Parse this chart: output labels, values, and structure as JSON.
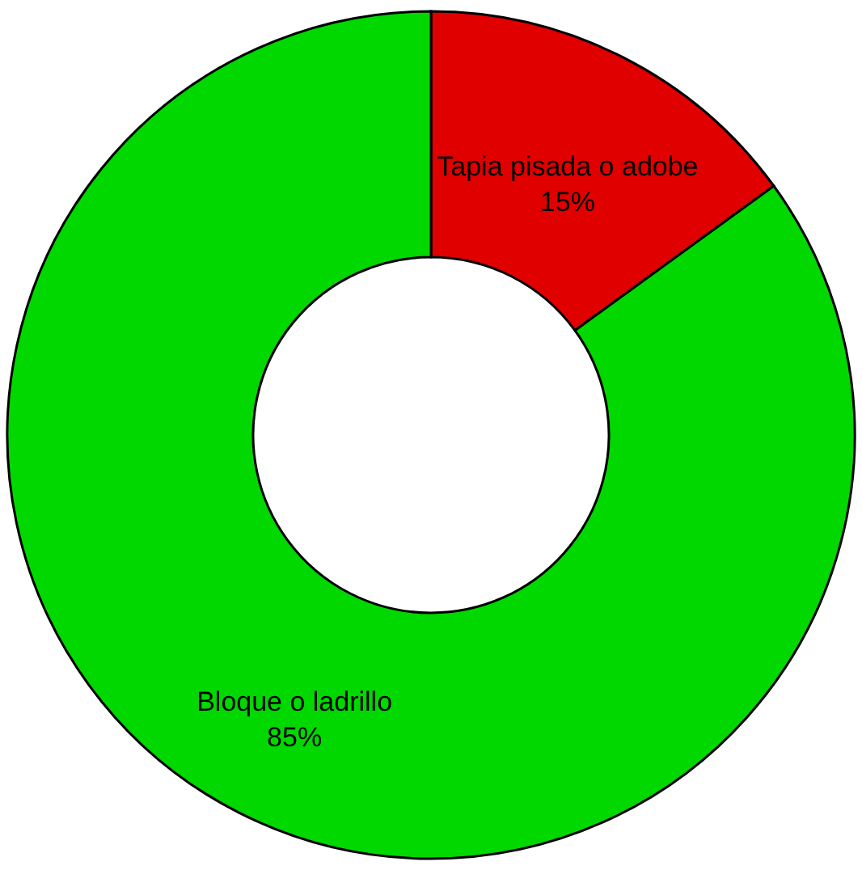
{
  "chart_data": {
    "type": "donut",
    "categories": [
      "Tapia pisada o adobe",
      "Bloque o ladrillo"
    ],
    "values": [
      15,
      85
    ],
    "colors": [
      "#e00000",
      "#00d800"
    ],
    "value_labels": [
      "15%",
      "85%"
    ]
  }
}
